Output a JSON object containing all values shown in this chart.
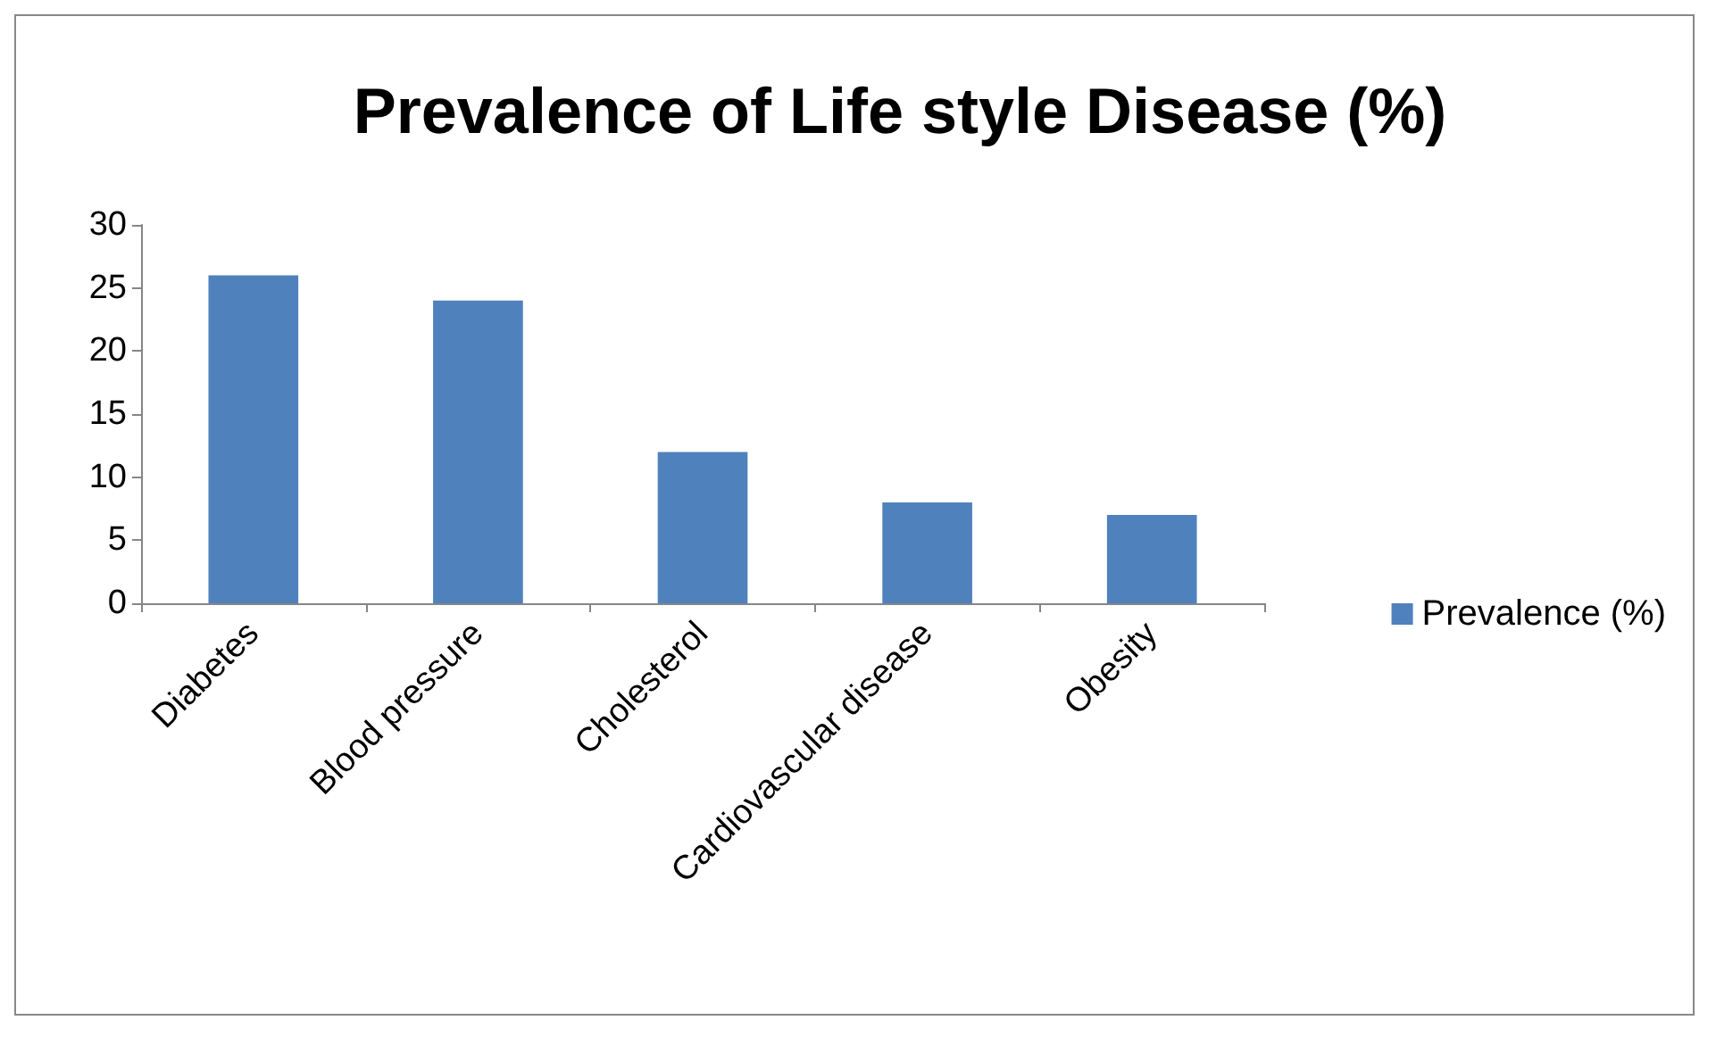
{
  "chart_data": {
    "type": "bar",
    "title": "Prevalence of Life style Disease (%)",
    "categories": [
      "Diabetes",
      "Blood pressure",
      "Cholesterol",
      "Cardiovascular disease",
      "Obesity"
    ],
    "series": [
      {
        "name": "Prevalence (%)",
        "color": "#4f81bd",
        "values": [
          26,
          24,
          12,
          8,
          7
        ]
      }
    ],
    "ylim": [
      0,
      30
    ],
    "yticks": [
      0,
      5,
      10,
      15,
      20,
      25,
      30
    ],
    "grid": false,
    "legend": "right"
  }
}
